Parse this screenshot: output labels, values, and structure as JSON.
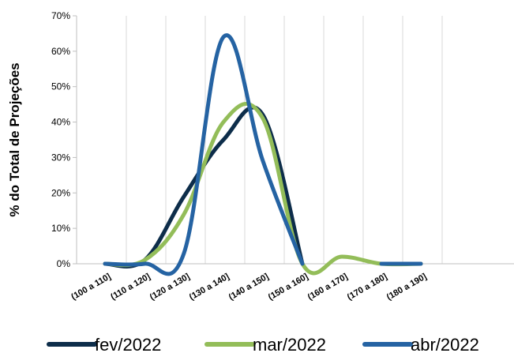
{
  "chart_data": {
    "type": "line",
    "ylabel": "% do Total de Projeções",
    "xlabel": "",
    "ylim": [
      0,
      70
    ],
    "y_ticks": [
      "0%",
      "10%",
      "20%",
      "30%",
      "40%",
      "50%",
      "60%",
      "70%"
    ],
    "grid": "vertical",
    "legend": "bottom",
    "categories": [
      "(100 a 110]",
      "(110 a 120]",
      "(120 a 130]",
      "(130 a 140]",
      "(140 a 150]",
      "(150 a 160]",
      "(160 a 170]",
      "(170 a 180]",
      "(180 a 190]"
    ],
    "series": [
      {
        "name": "fev/2022",
        "color": "#0d2d4a",
        "values": [
          0,
          1,
          19,
          35,
          42,
          0,
          null,
          0,
          0
        ]
      },
      {
        "name": "mar/2022",
        "color": "#93bd59",
        "values": [
          0,
          1,
          14,
          40,
          41,
          0,
          2,
          0,
          0
        ]
      },
      {
        "name": "abr/2022",
        "color": "#2563a3",
        "values": [
          0,
          0,
          3,
          64,
          29,
          0,
          null,
          0,
          0
        ]
      }
    ]
  }
}
